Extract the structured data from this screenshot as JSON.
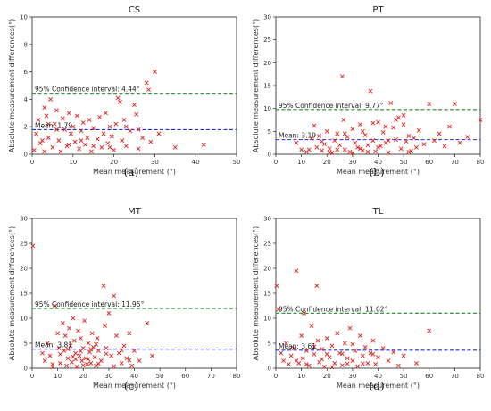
{
  "colors": {
    "points": "#e0201a",
    "mean_line": "#1f2fd6",
    "ci_line": "#1f8a2a",
    "axes": "#222222"
  },
  "chart_data": [
    {
      "type": "scatter",
      "title": "CS",
      "panel_label": "(a)",
      "xlabel": "Mean measurement (°)",
      "ylabel": "Absolute measurement differences(°)",
      "xlim": [
        0,
        50
      ],
      "ylim": [
        0,
        10
      ],
      "xticks": [
        "0",
        "10",
        "20",
        "30",
        "40",
        "50"
      ],
      "yticks": [
        "0",
        "2",
        "4",
        "6",
        "8",
        "10"
      ],
      "mean": 1.79,
      "mean_label": "Mean: 1.79",
      "ci": 4.44,
      "ci_label": "95% Confidence interval: 4.44°",
      "points": [
        [
          0.5,
          0.3
        ],
        [
          1,
          1.5
        ],
        [
          1.5,
          2.5
        ],
        [
          2,
          0.8
        ],
        [
          3,
          3.4
        ],
        [
          3.5,
          2.8
        ],
        [
          4,
          1.2
        ],
        [
          4.5,
          4
        ],
        [
          5,
          0.5
        ],
        [
          5.5,
          2.2
        ],
        [
          6,
          3.2
        ],
        [
          6.5,
          1.0
        ],
        [
          7,
          0.2
        ],
        [
          7.5,
          2.6
        ],
        [
          8,
          1.8
        ],
        [
          8.5,
          0.6
        ],
        [
          9,
          3.0
        ],
        [
          9.5,
          1.5
        ],
        [
          10,
          2.0
        ],
        [
          10.5,
          0.9
        ],
        [
          11,
          2.8
        ],
        [
          11.5,
          0.4
        ],
        [
          12,
          1.7
        ],
        [
          12.5,
          2.3
        ],
        [
          13,
          0.7
        ],
        [
          13.5,
          1.2
        ],
        [
          14,
          2.5
        ],
        [
          14.5,
          0.2
        ],
        [
          15,
          1.9
        ],
        [
          16,
          1.1
        ],
        [
          16.5,
          2.7
        ],
        [
          17,
          0.5
        ],
        [
          17.5,
          1.5
        ],
        [
          18,
          3.0
        ],
        [
          18.5,
          0.8
        ],
        [
          19,
          2.0
        ],
        [
          19.5,
          1.3
        ],
        [
          20,
          0.3
        ],
        [
          20.5,
          2.2
        ],
        [
          21,
          4.1
        ],
        [
          21.5,
          3.8
        ],
        [
          22,
          1.0
        ],
        [
          22.5,
          2.5
        ],
        [
          23,
          0.6
        ],
        [
          24,
          1.7
        ],
        [
          25,
          3.6
        ],
        [
          25.5,
          2.9
        ],
        [
          26,
          0.4
        ],
        [
          27,
          1.2
        ],
        [
          28,
          5.2
        ],
        [
          28.5,
          4.7
        ],
        [
          29,
          0.9
        ],
        [
          30,
          6.0
        ],
        [
          31,
          1.5
        ],
        [
          35,
          0.5
        ],
        [
          42,
          0.7
        ],
        [
          2.5,
          1.0
        ],
        [
          3,
          0.2
        ],
        [
          6,
          1.8
        ],
        [
          9,
          0.7
        ],
        [
          12,
          1.0
        ],
        [
          15,
          0.6
        ],
        [
          19,
          0.5
        ],
        [
          23,
          2.0
        ],
        [
          26,
          1.8
        ],
        [
          4,
          2.2
        ]
      ]
    },
    {
      "type": "scatter",
      "title": "PT",
      "panel_label": "(b)",
      "xlabel": "Mean measurement (°)",
      "ylabel": "Absolute measurement differences(°)",
      "xlim": [
        0,
        80
      ],
      "ylim": [
        0,
        30
      ],
      "xticks": [
        "0",
        "10",
        "20",
        "30",
        "40",
        "50",
        "60",
        "70",
        "80"
      ],
      "yticks": [
        "0",
        "5",
        "10",
        "15",
        "20",
        "25",
        "30"
      ],
      "mean": 3.19,
      "mean_label": "Mean: 3.19",
      "ci": 9.77,
      "ci_label": "95% Confidence interval: 9.77°",
      "points": [
        [
          8,
          2.5
        ],
        [
          10,
          1.0
        ],
        [
          12,
          0.5
        ],
        [
          14,
          3.5
        ],
        [
          15,
          6.2
        ],
        [
          16,
          1.5
        ],
        [
          17,
          4.0
        ],
        [
          18,
          0.8
        ],
        [
          19,
          2.2
        ],
        [
          20,
          5.0
        ],
        [
          21,
          1.2
        ],
        [
          22,
          0.3
        ],
        [
          23,
          3.0
        ],
        [
          24,
          4.5
        ],
        [
          25,
          2.0
        ],
        [
          26,
          17.0
        ],
        [
          26.5,
          7.5
        ],
        [
          27,
          1.0
        ],
        [
          28,
          3.8
        ],
        [
          29,
          0.5
        ],
        [
          30,
          5.5
        ],
        [
          31,
          2.5
        ],
        [
          32,
          1.5
        ],
        [
          33,
          6.5
        ],
        [
          34,
          0.8
        ],
        [
          35,
          4.2
        ],
        [
          36,
          2.0
        ],
        [
          37,
          13.8
        ],
        [
          38,
          3.0
        ],
        [
          39,
          0.6
        ],
        [
          40,
          7.0
        ],
        [
          41,
          1.8
        ],
        [
          42,
          4.8
        ],
        [
          43,
          2.5
        ],
        [
          44,
          0.4
        ],
        [
          45,
          11.2
        ],
        [
          46,
          5.8
        ],
        [
          47,
          3.2
        ],
        [
          48,
          8.0
        ],
        [
          49,
          1.2
        ],
        [
          50,
          6.5
        ],
        [
          51,
          2.8
        ],
        [
          52,
          4.0
        ],
        [
          53,
          0.7
        ],
        [
          54,
          3.5
        ],
        [
          55,
          1.5
        ],
        [
          56,
          5.2
        ],
        [
          58,
          2.2
        ],
        [
          60,
          11.0
        ],
        [
          62,
          3.0
        ],
        [
          64,
          4.5
        ],
        [
          66,
          1.8
        ],
        [
          68,
          6.0
        ],
        [
          70,
          11.0
        ],
        [
          72,
          2.5
        ],
        [
          75,
          3.8
        ],
        [
          80,
          7.5
        ],
        [
          13,
          1.0
        ],
        [
          18,
          2.8
        ],
        [
          21,
          0.4
        ],
        [
          24,
          1.0
        ],
        [
          27,
          4.5
        ],
        [
          30,
          0.3
        ],
        [
          33,
          1.2
        ],
        [
          36,
          0.5
        ],
        [
          40,
          1.5
        ],
        [
          43,
          6.0
        ],
        [
          47,
          7.5
        ],
        [
          50,
          8.5
        ],
        [
          52,
          0.5
        ],
        [
          34,
          5.0
        ],
        [
          38,
          6.8
        ],
        [
          44,
          3.0
        ]
      ]
    },
    {
      "type": "scatter",
      "title": "MT",
      "panel_label": "(c)",
      "xlabel": "Mean measurement (°)",
      "ylabel": "Absolute measurement differences(°)",
      "xlim": [
        0,
        80
      ],
      "ylim": [
        0,
        30
      ],
      "xticks": [
        "0",
        "10",
        "20",
        "30",
        "40",
        "50",
        "60",
        "70",
        "80"
      ],
      "yticks": [
        "0",
        "5",
        "10",
        "15",
        "20",
        "25",
        "30"
      ],
      "mean": 3.81,
      "mean_label": "Mean: 3.81",
      "ci": 11.95,
      "ci_label": "95% Confidence interval: 11.95°",
      "points": [
        [
          0.3,
          24.5
        ],
        [
          4,
          3.0
        ],
        [
          5,
          1.5
        ],
        [
          6,
          5.0
        ],
        [
          7,
          2.5
        ],
        [
          8,
          0.8
        ],
        [
          9,
          12.5
        ],
        [
          10,
          7.0
        ],
        [
          10.5,
          4.0
        ],
        [
          11,
          1.0
        ],
        [
          12,
          9.0
        ],
        [
          12.5,
          3.5
        ],
        [
          13,
          6.5
        ],
        [
          13.5,
          0.5
        ],
        [
          14,
          2.0
        ],
        [
          14.5,
          8.0
        ],
        [
          15,
          4.5
        ],
        [
          15.5,
          1.2
        ],
        [
          16,
          10.0
        ],
        [
          16.5,
          5.5
        ],
        [
          17,
          3.0
        ],
        [
          17.5,
          0.3
        ],
        [
          18,
          7.5
        ],
        [
          18.5,
          2.5
        ],
        [
          19,
          6.0
        ],
        [
          19.5,
          1.5
        ],
        [
          20,
          4.0
        ],
        [
          20.5,
          9.5
        ],
        [
          21,
          2.0
        ],
        [
          21.5,
          0.8
        ],
        [
          22,
          5.0
        ],
        [
          22.5,
          3.2
        ],
        [
          23,
          1.0
        ],
        [
          23.5,
          7.0
        ],
        [
          24,
          4.2
        ],
        [
          24.5,
          2.2
        ],
        [
          25,
          0.5
        ],
        [
          25.5,
          6.0
        ],
        [
          26,
          3.5
        ],
        [
          27,
          1.5
        ],
        [
          28,
          16.5
        ],
        [
          28.5,
          8.5
        ],
        [
          29,
          4.0
        ],
        [
          30,
          11.0
        ],
        [
          31,
          2.5
        ],
        [
          32,
          14.5
        ],
        [
          33,
          6.5
        ],
        [
          34,
          3.0
        ],
        [
          35,
          1.0
        ],
        [
          36,
          4.5
        ],
        [
          37,
          2.0
        ],
        [
          38,
          7.0
        ],
        [
          39,
          0.5
        ],
        [
          40,
          3.5
        ],
        [
          42,
          1.5
        ],
        [
          45,
          9.0
        ],
        [
          47,
          2.5
        ],
        [
          8,
          0.2
        ],
        [
          11,
          2.8
        ],
        [
          14,
          3.8
        ],
        [
          17,
          1.8
        ],
        [
          20,
          0.6
        ],
        [
          23,
          3.8
        ],
        [
          26,
          0.9
        ],
        [
          29,
          2.9
        ],
        [
          32,
          0.4
        ],
        [
          35,
          3.6
        ],
        [
          38,
          1.6
        ],
        [
          16,
          2.3
        ],
        [
          19,
          3.4
        ],
        [
          22,
          1.8
        ],
        [
          25,
          4.8
        ]
      ]
    },
    {
      "type": "scatter",
      "title": "TL",
      "panel_label": "(d)",
      "xlabel": "Mean measurement (°)",
      "ylabel": "Absolute measurement differences(°)",
      "xlim": [
        0,
        80
      ],
      "ylim": [
        0,
        30
      ],
      "xticks": [
        "0",
        "10",
        "20",
        "30",
        "40",
        "50",
        "60",
        "70",
        "80"
      ],
      "yticks": [
        "0",
        "5",
        "10",
        "15",
        "20",
        "25",
        "30"
      ],
      "mean": 3.61,
      "mean_label": "Mean: 3.61",
      "ci": 11.02,
      "ci_label": "95% Confidence interval: 11.02°",
      "points": [
        [
          0.3,
          16.5
        ],
        [
          1,
          11.8
        ],
        [
          2,
          3.0
        ],
        [
          3,
          1.5
        ],
        [
          4,
          5.0
        ],
        [
          5,
          0.8
        ],
        [
          6,
          2.5
        ],
        [
          7,
          4.0
        ],
        [
          8,
          19.5
        ],
        [
          9,
          1.0
        ],
        [
          10,
          6.5
        ],
        [
          10.5,
          2.0
        ],
        [
          11,
          11.0
        ],
        [
          12,
          3.5
        ],
        [
          13,
          0.5
        ],
        [
          14,
          8.5
        ],
        [
          15,
          2.8
        ],
        [
          16,
          16.5
        ],
        [
          16.5,
          5.5
        ],
        [
          17,
          1.2
        ],
        [
          18,
          3.8
        ],
        [
          19,
          0.3
        ],
        [
          20,
          6.0
        ],
        [
          21,
          2.2
        ],
        [
          22,
          4.5
        ],
        [
          23,
          1.0
        ],
        [
          24,
          7.0
        ],
        [
          25,
          3.0
        ],
        [
          26,
          0.6
        ],
        [
          27,
          5.0
        ],
        [
          28,
          2.0
        ],
        [
          29,
          8.0
        ],
        [
          30,
          1.5
        ],
        [
          31,
          3.5
        ],
        [
          32,
          0.4
        ],
        [
          33,
          6.5
        ],
        [
          34,
          2.5
        ],
        [
          35,
          4.2
        ],
        [
          36,
          1.0
        ],
        [
          37,
          3.0
        ],
        [
          38,
          5.5
        ],
        [
          39,
          0.8
        ],
        [
          40,
          2.2
        ],
        [
          42,
          4.0
        ],
        [
          44,
          1.5
        ],
        [
          46,
          3.2
        ],
        [
          48,
          0.5
        ],
        [
          50,
          2.5
        ],
        [
          55,
          1.0
        ],
        [
          60,
          7.5
        ],
        [
          8,
          1.5
        ],
        [
          12,
          0.8
        ],
        [
          18,
          1.8
        ],
        [
          22,
          0.2
        ],
        [
          26,
          2.9
        ],
        [
          30,
          4.8
        ],
        [
          34,
          0.9
        ],
        [
          38,
          2.8
        ],
        [
          15,
          4.3
        ],
        [
          20,
          2.8
        ],
        [
          28,
          0.9
        ]
      ]
    }
  ]
}
